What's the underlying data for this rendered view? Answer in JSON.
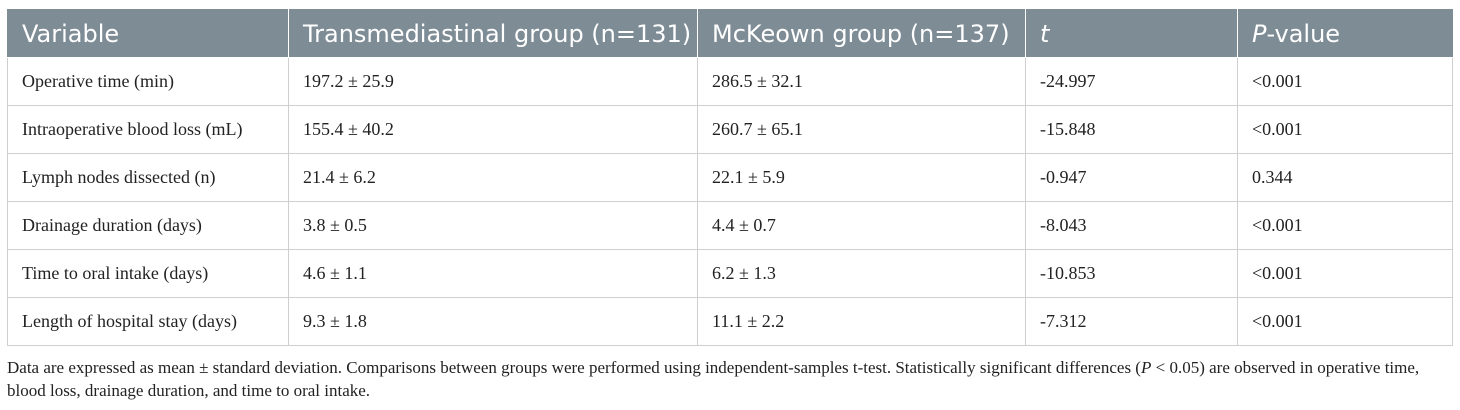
{
  "table": {
    "headers": {
      "variable": "Variable",
      "transmediastinal": "Transmediastinal group (n=131)",
      "mckeown": "McKeown group (n=137)",
      "t": "t",
      "p_letter": "P",
      "p_suffix": "-value"
    },
    "rows": [
      {
        "variable": "Operative time (min)",
        "transmediastinal": "197.2 ± 25.9",
        "mckeown": "286.5 ± 32.1",
        "t": "-24.997",
        "p": "<0.001"
      },
      {
        "variable": "Intraoperative blood loss (mL)",
        "transmediastinal": "155.4 ± 40.2",
        "mckeown": "260.7 ± 65.1",
        "t": "-15.848",
        "p": "<0.001"
      },
      {
        "variable": "Lymph nodes dissected (n)",
        "transmediastinal": "21.4 ± 6.2",
        "mckeown": "22.1 ± 5.9",
        "t": "-0.947",
        "p": "0.344"
      },
      {
        "variable": "Drainage duration (days)",
        "transmediastinal": "3.8 ± 0.5",
        "mckeown": "4.4 ± 0.7",
        "t": "-8.043",
        "p": "<0.001"
      },
      {
        "variable": "Time to oral intake (days)",
        "transmediastinal": "4.6 ± 1.1",
        "mckeown": "6.2 ± 1.3",
        "t": "-10.853",
        "p": "<0.001"
      },
      {
        "variable": "Length of hospital stay (days)",
        "transmediastinal": "9.3 ± 1.8",
        "mckeown": "11.1 ± 2.2",
        "t": "-7.312",
        "p": "<0.001"
      }
    ]
  },
  "footnote": {
    "before": "Data are expressed as mean ± standard deviation. Comparisons between groups were performed using independent-samples t-test. Statistically significant differences (",
    "p_letter": "P",
    "after": " < 0.05) are observed in operative time, blood loss, drainage duration, and time to oral intake."
  }
}
